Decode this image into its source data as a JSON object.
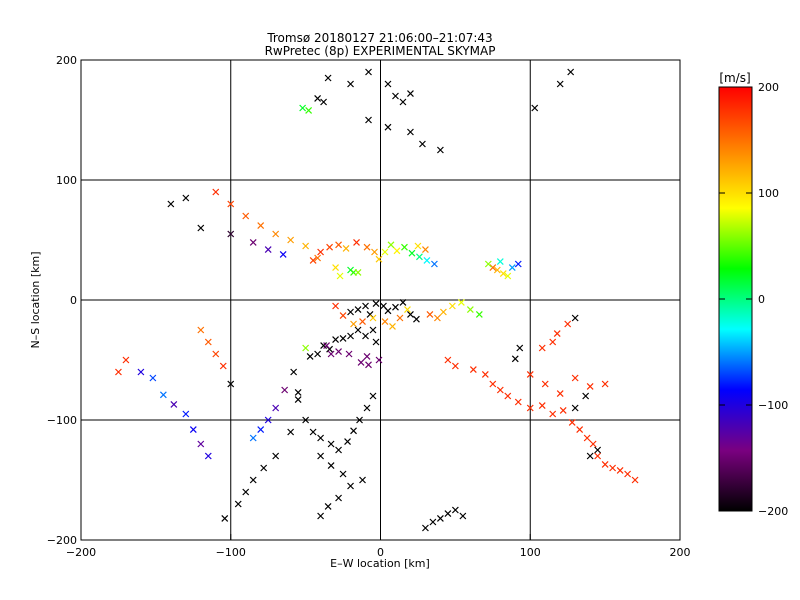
{
  "chart_data": {
    "type": "scatter",
    "title": "Tromsø 20180127 21:06:00–21:07:43",
    "subtitle": "RwPretec (8p) EXPERIMENTAL SKYMAP",
    "xlabel": "E–W location [km]",
    "ylabel": "N–S location [km]",
    "xlim": [
      -200,
      200
    ],
    "ylim": [
      -200,
      200
    ],
    "x_ticks": [
      -200,
      -100,
      0,
      100,
      200
    ],
    "y_ticks": [
      -200,
      -100,
      0,
      100,
      200
    ],
    "x_tick_labels": [
      "−200",
      "−100",
      "0",
      "100",
      "200"
    ],
    "y_tick_labels": [
      "−200",
      "−100",
      "0",
      "100",
      "200"
    ],
    "grid": true,
    "colorbar": {
      "label": "[m/s]",
      "range": [
        -200,
        200
      ],
      "ticks": [
        200,
        100,
        0,
        -100,
        -200
      ],
      "tick_labels": [
        "200",
        "100",
        "0",
        "−100",
        "−200"
      ],
      "colormap": [
        "#000000",
        "#7a0080",
        "#0000ff",
        "#00ffff",
        "#00ff00",
        "#ffff00",
        "#ff8000",
        "#ff0000"
      ]
    },
    "series": [
      {
        "marker": "x",
        "points": [
          [
            -55,
            -83
          ],
          [
            -55,
            -77
          ],
          [
            -47,
            -47
          ],
          [
            -42,
            -45
          ],
          [
            -38,
            -38
          ],
          [
            -34,
            -41
          ],
          [
            -30,
            -33
          ],
          [
            -25,
            -32
          ],
          [
            -20,
            -30
          ],
          [
            -15,
            -25
          ],
          [
            -10,
            -30
          ],
          [
            -5,
            -25
          ],
          [
            -3,
            -35
          ],
          [
            -36,
            -38
          ],
          [
            -33,
            -45
          ],
          [
            -28,
            -43
          ],
          [
            -21,
            -45
          ],
          [
            -13,
            -52
          ],
          [
            -9,
            -47
          ],
          [
            -1,
            -50
          ],
          [
            -8,
            -54
          ],
          [
            -45,
            33
          ],
          [
            -42,
            35
          ],
          [
            -40,
            40
          ],
          [
            -34,
            44
          ],
          [
            -28,
            46
          ],
          [
            -23,
            43
          ],
          [
            -16,
            48
          ],
          [
            -9,
            44
          ],
          [
            -4,
            40
          ],
          [
            -1,
            34
          ],
          [
            3,
            40
          ],
          [
            7,
            46
          ],
          [
            11,
            41
          ],
          [
            16,
            44
          ],
          [
            21,
            39
          ],
          [
            26,
            36
          ],
          [
            31,
            33
          ],
          [
            36,
            30
          ],
          [
            25,
            45
          ],
          [
            30,
            42
          ],
          [
            -20,
            -10
          ],
          [
            -15,
            -8
          ],
          [
            -10,
            -5
          ],
          [
            -7,
            -12
          ],
          [
            -3,
            -3
          ],
          [
            2,
            -5
          ],
          [
            5,
            -9
          ],
          [
            10,
            -6
          ],
          [
            15,
            -2
          ],
          [
            20,
            -12
          ],
          [
            24,
            -16
          ],
          [
            -25,
            -13
          ],
          [
            -30,
            -5
          ],
          [
            -12,
            -18
          ],
          [
            3,
            -18
          ],
          [
            8,
            -22
          ],
          [
            13,
            -15
          ],
          [
            -18,
            -20
          ],
          [
            -5,
            -15
          ],
          [
            18,
            -8
          ],
          [
            -20,
            25
          ],
          [
            -18,
            23
          ],
          [
            -15,
            23
          ],
          [
            -27,
            20
          ],
          [
            -30,
            27
          ],
          [
            75,
            27
          ],
          [
            78,
            25
          ],
          [
            82,
            22
          ],
          [
            85,
            20
          ],
          [
            72,
            30
          ],
          [
            80,
            32
          ],
          [
            88,
            27
          ],
          [
            92,
            30
          ],
          [
            45,
            -50
          ],
          [
            50,
            -55
          ],
          [
            62,
            -58
          ],
          [
            70,
            -62
          ],
          [
            75,
            -70
          ],
          [
            80,
            -75
          ],
          [
            85,
            -80
          ],
          [
            92,
            -85
          ],
          [
            100,
            -90
          ],
          [
            108,
            -88
          ],
          [
            115,
            -95
          ],
          [
            122,
            -92
          ],
          [
            128,
            -102
          ],
          [
            133,
            -108
          ],
          [
            138,
            -115
          ],
          [
            142,
            -120
          ],
          [
            145,
            -130
          ],
          [
            150,
            -137
          ],
          [
            155,
            -140
          ],
          [
            160,
            -142
          ],
          [
            165,
            -145
          ],
          [
            170,
            -150
          ],
          [
            90,
            -49
          ],
          [
            93,
            -40
          ],
          [
            100,
            -62
          ],
          [
            110,
            -70
          ],
          [
            120,
            -78
          ],
          [
            130,
            -65
          ],
          [
            140,
            -72
          ],
          [
            -50,
            -100
          ],
          [
            -45,
            -110
          ],
          [
            -40,
            -115
          ],
          [
            -33,
            -120
          ],
          [
            -28,
            -125
          ],
          [
            -22,
            -118
          ],
          [
            -18,
            -109
          ],
          [
            -14,
            -100
          ],
          [
            -9,
            -90
          ],
          [
            -5,
            -80
          ],
          [
            -40,
            -130
          ],
          [
            -33,
            -138
          ],
          [
            -25,
            -145
          ],
          [
            -60,
            -110
          ],
          [
            -70,
            -130
          ],
          [
            -78,
            -140
          ],
          [
            -85,
            -150
          ],
          [
            -90,
            -160
          ],
          [
            -95,
            -170
          ],
          [
            -104,
            -182
          ],
          [
            -115,
            -130
          ],
          [
            -120,
            -120
          ],
          [
            -125,
            -108
          ],
          [
            -130,
            -95
          ],
          [
            -138,
            -87
          ],
          [
            -145,
            -79
          ],
          [
            -152,
            -65
          ],
          [
            -160,
            -60
          ],
          [
            -170,
            -50
          ],
          [
            -175,
            -60
          ],
          [
            -130,
            85
          ],
          [
            -110,
            90
          ],
          [
            -100,
            80
          ],
          [
            -90,
            70
          ],
          [
            -80,
            62
          ],
          [
            -70,
            55
          ],
          [
            -60,
            50
          ],
          [
            -50,
            45
          ],
          [
            -140,
            80
          ],
          [
            -120,
            60
          ],
          [
            -100,
            55
          ],
          [
            -85,
            48
          ],
          [
            -75,
            42
          ],
          [
            -65,
            38
          ],
          [
            -50,
            -40
          ],
          [
            -58,
            -60
          ],
          [
            -64,
            -75
          ],
          [
            -70,
            -90
          ],
          [
            -75,
            -100
          ],
          [
            -80,
            -108
          ],
          [
            -85,
            -115
          ],
          [
            -100,
            -70
          ],
          [
            -105,
            -55
          ],
          [
            -110,
            -45
          ],
          [
            -115,
            -35
          ],
          [
            -120,
            -25
          ],
          [
            -35,
            185
          ],
          [
            -20,
            180
          ],
          [
            -8,
            190
          ],
          [
            5,
            180
          ],
          [
            10,
            170
          ],
          [
            15,
            165
          ],
          [
            20,
            172
          ],
          [
            120,
            180
          ],
          [
            127,
            190
          ],
          [
            103,
            160
          ],
          [
            33,
            -12
          ],
          [
            38,
            -15
          ],
          [
            42,
            -10
          ],
          [
            48,
            -5
          ],
          [
            54,
            -2
          ],
          [
            60,
            -8
          ],
          [
            66,
            -12
          ],
          [
            -8,
            150
          ],
          [
            5,
            144
          ],
          [
            20,
            140
          ],
          [
            28,
            130
          ],
          [
            40,
            125
          ],
          [
            30,
            -190
          ],
          [
            35,
            -185
          ],
          [
            40,
            -182
          ],
          [
            45,
            -178
          ],
          [
            50,
            -175
          ],
          [
            55,
            -180
          ],
          [
            -52,
            160
          ],
          [
            -48,
            158
          ],
          [
            -42,
            168
          ],
          [
            -38,
            165
          ],
          [
            130,
            -90
          ],
          [
            137,
            -80
          ],
          [
            140,
            -130
          ],
          [
            145,
            -125
          ],
          [
            150,
            -70
          ],
          [
            108,
            -40
          ],
          [
            115,
            -35
          ],
          [
            118,
            -28
          ],
          [
            125,
            -20
          ],
          [
            130,
            -15
          ],
          [
            -40,
            -180
          ],
          [
            -35,
            -172
          ],
          [
            -28,
            -165
          ],
          [
            -20,
            -155
          ],
          [
            -12,
            -150
          ]
        ],
        "values": [
          -200,
          -200,
          -200,
          -200,
          -200,
          -200,
          -200,
          -200,
          -200,
          -200,
          -200,
          -200,
          -200,
          -150,
          -150,
          -150,
          -150,
          -150,
          -150,
          -150,
          -150,
          170,
          150,
          180,
          170,
          160,
          120,
          180,
          150,
          130,
          110,
          80,
          60,
          90,
          40,
          20,
          0,
          -30,
          -60,
          100,
          140,
          -200,
          -200,
          -200,
          -200,
          -200,
          -200,
          -200,
          -200,
          -200,
          -200,
          -200,
          170,
          180,
          160,
          140,
          120,
          150,
          130,
          110,
          100,
          20,
          40,
          60,
          80,
          100,
          150,
          120,
          100,
          80,
          60,
          -20,
          -50,
          -80,
          180,
          180,
          180,
          180,
          180,
          180,
          180,
          180,
          180,
          180,
          180,
          180,
          180,
          180,
          180,
          180,
          180,
          180,
          180,
          180,
          180,
          180,
          -200,
          -200,
          180,
          180,
          180,
          180,
          180,
          -200,
          -200,
          -200,
          -200,
          -200,
          -200,
          -200,
          -200,
          -200,
          -200,
          -200,
          -200,
          -200,
          -200,
          -200,
          -200,
          -200,
          -200,
          -200,
          -200,
          -100,
          -130,
          -90,
          -80,
          -120,
          -60,
          -70,
          -100,
          180,
          180,
          -200,
          180,
          170,
          160,
          150,
          140,
          130,
          120,
          -200,
          -200,
          -180,
          -150,
          -120,
          -90,
          60,
          -200,
          -150,
          -120,
          -100,
          -80,
          -60,
          -200,
          180,
          170,
          160,
          150,
          -200,
          -200,
          -200,
          -200,
          -200,
          -200,
          -200,
          -200,
          -200,
          -200,
          160,
          140,
          120,
          100,
          80,
          60,
          40,
          -200,
          -200,
          -200,
          -200,
          -200,
          -200,
          -200,
          -200,
          -200,
          -200,
          -200,
          20,
          40,
          -200,
          -200,
          -200,
          -200,
          -200,
          -200,
          180,
          180,
          180,
          180,
          180,
          -200,
          -200,
          -200,
          -200,
          -200,
          -200
        ]
      }
    ]
  },
  "chart_markers": {
    "title_prefix": "",
    "marker_types": [
      "x",
      "dot"
    ]
  }
}
